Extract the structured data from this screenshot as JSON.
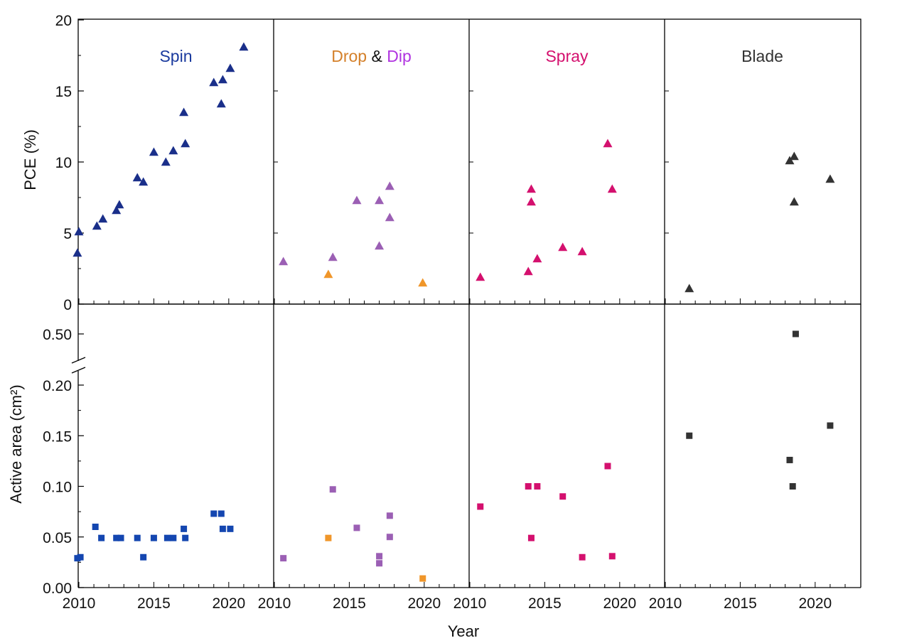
{
  "chart_data": {
    "type": "scatter",
    "x_axis": {
      "label": "Year",
      "range": [
        2010,
        2022
      ],
      "ticks": [
        2010,
        2015,
        2020
      ],
      "tick_labels": [
        "2010",
        "2015",
        "2020"
      ]
    },
    "top_y_axis": {
      "label": "PCE (%)",
      "range": [
        0,
        20
      ],
      "ticks": [
        0,
        5,
        10,
        15,
        20
      ],
      "tick_labels": [
        "0",
        "5",
        "10",
        "15",
        "20"
      ]
    },
    "bottom_y_axis": {
      "label": "Active area (cm²)",
      "range": [
        0,
        0.2
      ],
      "ticks": [
        0,
        0.05,
        0.1,
        0.15,
        0.2
      ],
      "tick_labels": [
        "0.00",
        "0.05",
        "0.10",
        "0.15",
        "0.20"
      ],
      "broken_axis_upper_ticks": [
        0.5
      ],
      "broken_axis_upper_tick_labels": [
        "0.50"
      ]
    },
    "marker_colors": {
      "spin": "#1a2f8a",
      "spin_area": "#1446b0",
      "dip": "#9b5fb4",
      "drop": "#f0962a",
      "spray": "#d4106e",
      "blade": "#333333"
    },
    "panels": [
      {
        "title_parts": [
          {
            "text": "Spin",
            "color": "#1a3a9e"
          }
        ],
        "pce": [
          {
            "x": 2009.9,
            "y": 3.6,
            "color": "#1a2f8a"
          },
          {
            "x": 2010.0,
            "y": 5.1,
            "color": "#1a2f8a"
          },
          {
            "x": 2011.2,
            "y": 5.5,
            "color": "#1a2f8a"
          },
          {
            "x": 2011.6,
            "y": 6.0,
            "color": "#1a2f8a"
          },
          {
            "x": 2012.5,
            "y": 6.6,
            "color": "#1a2f8a"
          },
          {
            "x": 2012.7,
            "y": 7.0,
            "color": "#1a2f8a"
          },
          {
            "x": 2013.9,
            "y": 8.9,
            "color": "#1a2f8a"
          },
          {
            "x": 2014.3,
            "y": 8.6,
            "color": "#1a2f8a"
          },
          {
            "x": 2015.0,
            "y": 10.7,
            "color": "#1a2f8a"
          },
          {
            "x": 2015.8,
            "y": 10.0,
            "color": "#1a2f8a"
          },
          {
            "x": 2016.3,
            "y": 10.8,
            "color": "#1a2f8a"
          },
          {
            "x": 2017.0,
            "y": 13.5,
            "color": "#1a2f8a"
          },
          {
            "x": 2017.1,
            "y": 11.3,
            "color": "#1a2f8a"
          },
          {
            "x": 2019.0,
            "y": 15.6,
            "color": "#1a2f8a"
          },
          {
            "x": 2019.5,
            "y": 14.1,
            "color": "#1a2f8a"
          },
          {
            "x": 2019.6,
            "y": 15.8,
            "color": "#1a2f8a"
          },
          {
            "x": 2020.1,
            "y": 16.6,
            "color": "#1a2f8a"
          },
          {
            "x": 2021.0,
            "y": 18.1,
            "color": "#1a2f8a"
          }
        ],
        "area": [
          {
            "x": 2009.9,
            "y": 0.029,
            "color": "#1446b0"
          },
          {
            "x": 2010.1,
            "y": 0.03,
            "color": "#1446b0"
          },
          {
            "x": 2011.1,
            "y": 0.06,
            "color": "#1446b0"
          },
          {
            "x": 2011.5,
            "y": 0.049,
            "color": "#1446b0"
          },
          {
            "x": 2012.5,
            "y": 0.049,
            "color": "#1446b0"
          },
          {
            "x": 2012.8,
            "y": 0.049,
            "color": "#1446b0"
          },
          {
            "x": 2013.9,
            "y": 0.049,
            "color": "#1446b0"
          },
          {
            "x": 2014.3,
            "y": 0.03,
            "color": "#1446b0"
          },
          {
            "x": 2015.0,
            "y": 0.049,
            "color": "#1446b0"
          },
          {
            "x": 2015.9,
            "y": 0.049,
            "color": "#1446b0"
          },
          {
            "x": 2016.3,
            "y": 0.049,
            "color": "#1446b0"
          },
          {
            "x": 2017.0,
            "y": 0.058,
            "color": "#1446b0"
          },
          {
            "x": 2017.1,
            "y": 0.049,
            "color": "#1446b0"
          },
          {
            "x": 2019.0,
            "y": 0.073,
            "color": "#1446b0"
          },
          {
            "x": 2019.5,
            "y": 0.073,
            "color": "#1446b0"
          },
          {
            "x": 2019.6,
            "y": 0.058,
            "color": "#1446b0"
          },
          {
            "x": 2020.1,
            "y": 0.058,
            "color": "#1446b0"
          }
        ]
      },
      {
        "title_parts": [
          {
            "text": "Drop",
            "color": "#d4802a"
          },
          {
            "text": "&",
            "color": "#111111"
          },
          {
            "text": "Dip",
            "color": "#b033e0"
          }
        ],
        "pce": [
          {
            "x": 2010.6,
            "y": 3.0,
            "color": "#9b5fb4"
          },
          {
            "x": 2013.6,
            "y": 2.1,
            "color": "#f0962a"
          },
          {
            "x": 2013.9,
            "y": 3.3,
            "color": "#9b5fb4"
          },
          {
            "x": 2015.5,
            "y": 7.3,
            "color": "#9b5fb4"
          },
          {
            "x": 2017.0,
            "y": 7.3,
            "color": "#9b5fb4"
          },
          {
            "x": 2017.0,
            "y": 4.1,
            "color": "#9b5fb4"
          },
          {
            "x": 2017.7,
            "y": 8.3,
            "color": "#9b5fb4"
          },
          {
            "x": 2017.7,
            "y": 6.1,
            "color": "#9b5fb4"
          },
          {
            "x": 2019.9,
            "y": 1.5,
            "color": "#f0962a"
          }
        ],
        "area": [
          {
            "x": 2010.6,
            "y": 0.029,
            "color": "#9b5fb4"
          },
          {
            "x": 2013.6,
            "y": 0.049,
            "color": "#f0962a"
          },
          {
            "x": 2013.9,
            "y": 0.097,
            "color": "#9b5fb4"
          },
          {
            "x": 2015.5,
            "y": 0.059,
            "color": "#9b5fb4"
          },
          {
            "x": 2017.0,
            "y": 0.031,
            "color": "#9b5fb4"
          },
          {
            "x": 2017.0,
            "y": 0.024,
            "color": "#9b5fb4"
          },
          {
            "x": 2017.7,
            "y": 0.071,
            "color": "#9b5fb4"
          },
          {
            "x": 2017.7,
            "y": 0.05,
            "color": "#9b5fb4"
          },
          {
            "x": 2019.9,
            "y": 0.009,
            "color": "#f0962a"
          }
        ]
      },
      {
        "title_parts": [
          {
            "text": "Spray",
            "color": "#d4106e"
          }
        ],
        "pce": [
          {
            "x": 2010.7,
            "y": 1.9,
            "color": "#d4106e"
          },
          {
            "x": 2013.9,
            "y": 2.3,
            "color": "#d4106e"
          },
          {
            "x": 2014.1,
            "y": 7.2,
            "color": "#d4106e"
          },
          {
            "x": 2014.1,
            "y": 8.1,
            "color": "#d4106e"
          },
          {
            "x": 2014.5,
            "y": 3.2,
            "color": "#d4106e"
          },
          {
            "x": 2016.2,
            "y": 4.0,
            "color": "#d4106e"
          },
          {
            "x": 2017.5,
            "y": 3.7,
            "color": "#d4106e"
          },
          {
            "x": 2019.2,
            "y": 11.3,
            "color": "#d4106e"
          },
          {
            "x": 2019.5,
            "y": 8.1,
            "color": "#d4106e"
          }
        ],
        "area": [
          {
            "x": 2010.7,
            "y": 0.08,
            "color": "#d4106e"
          },
          {
            "x": 2013.9,
            "y": 0.1,
            "color": "#d4106e"
          },
          {
            "x": 2014.1,
            "y": 0.049,
            "color": "#d4106e"
          },
          {
            "x": 2014.5,
            "y": 0.1,
            "color": "#d4106e"
          },
          {
            "x": 2016.2,
            "y": 0.09,
            "color": "#d4106e"
          },
          {
            "x": 2017.5,
            "y": 0.03,
            "color": "#d4106e"
          },
          {
            "x": 2019.2,
            "y": 0.12,
            "color": "#d4106e"
          },
          {
            "x": 2019.5,
            "y": 0.031,
            "color": "#d4106e"
          }
        ]
      },
      {
        "title_parts": [
          {
            "text": "Blade",
            "color": "#333333"
          }
        ],
        "pce": [
          {
            "x": 2011.6,
            "y": 1.1,
            "color": "#333333"
          },
          {
            "x": 2018.3,
            "y": 10.1,
            "color": "#333333"
          },
          {
            "x": 2018.6,
            "y": 10.4,
            "color": "#333333"
          },
          {
            "x": 2018.6,
            "y": 7.2,
            "color": "#333333"
          },
          {
            "x": 2021.0,
            "y": 8.8,
            "color": "#333333"
          }
        ],
        "area": [
          {
            "x": 2011.6,
            "y": 0.15,
            "color": "#333333"
          },
          {
            "x": 2018.3,
            "y": 0.126,
            "color": "#333333"
          },
          {
            "x": 2018.5,
            "y": 0.1,
            "color": "#333333"
          },
          {
            "x": 2018.7,
            "y": 0.5,
            "color": "#333333"
          },
          {
            "x": 2021.0,
            "y": 0.16,
            "color": "#333333"
          }
        ]
      }
    ]
  }
}
